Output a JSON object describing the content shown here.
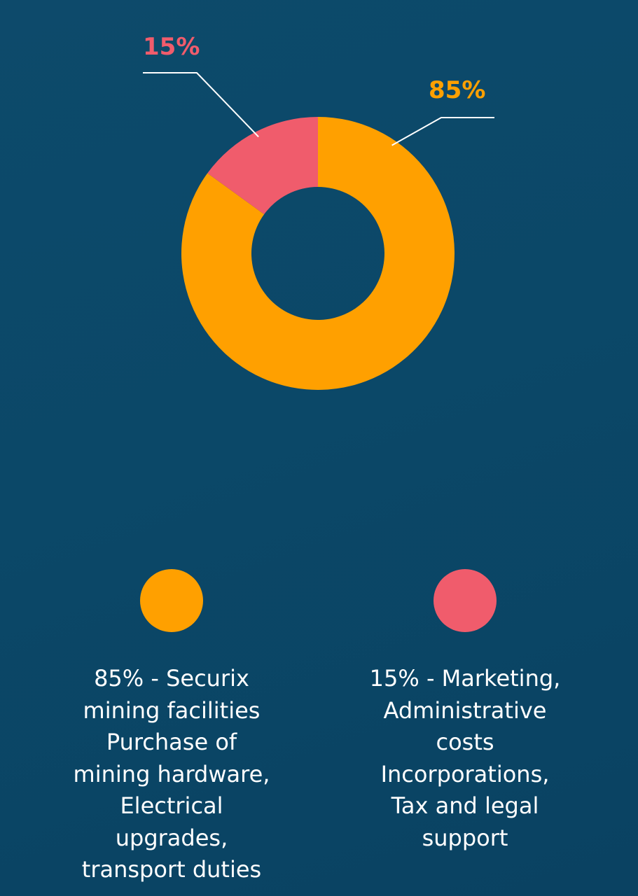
{
  "chart_data": {
    "type": "pie",
    "donut": true,
    "slices": [
      {
        "label": "85%",
        "value": 85,
        "color": "#ffa000"
      },
      {
        "label": "15%",
        "value": 15,
        "color": "#f05c6c"
      }
    ]
  },
  "colors": {
    "background": "#0b4868",
    "major": "#ffa000",
    "minor": "#f05c6c",
    "text": "#ffffff"
  },
  "legend": [
    {
      "color": "#ffa000",
      "lines": [
        "85% - Securix",
        "mining facilities",
        "Purchase of",
        "mining hardware,",
        "Electrical",
        "upgrades,",
        "transport duties"
      ]
    },
    {
      "color": "#f05c6c",
      "lines": [
        "15% - Marketing,",
        "Administrative",
        "costs",
        "Incorporations,",
        "Tax and legal",
        "support"
      ]
    }
  ]
}
